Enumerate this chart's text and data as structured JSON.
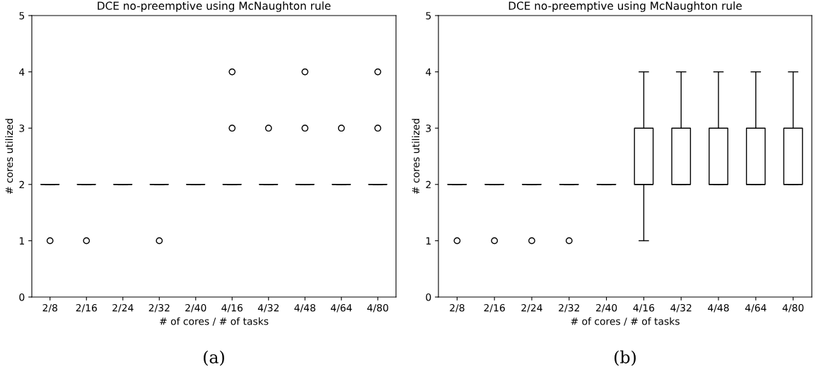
{
  "chart_data": [
    {
      "type": "box",
      "title": "DCE no-preemptive using McNaughton rule",
      "xlabel": "# of cores / # of tasks",
      "ylabel": "# cores utilized",
      "categories": [
        "2/8",
        "2/16",
        "2/24",
        "2/32",
        "2/40",
        "4/16",
        "4/32",
        "4/48",
        "4/64",
        "4/80"
      ],
      "ylim": [
        0,
        5
      ],
      "yticks": [
        0,
        1,
        2,
        3,
        4,
        5
      ],
      "grid": false,
      "annotations": [
        "(a)"
      ],
      "series": [
        {
          "color": "#000000",
          "boxes": [
            {
              "low": 2,
              "q1": 2,
              "median": 2,
              "q3": 2,
              "high": 2,
              "outliers": [
                1
              ]
            },
            {
              "low": 2,
              "q1": 2,
              "median": 2,
              "q3": 2,
              "high": 2,
              "outliers": [
                1
              ]
            },
            {
              "low": 2,
              "q1": 2,
              "median": 2,
              "q3": 2,
              "high": 2
            },
            {
              "low": 2,
              "q1": 2,
              "median": 2,
              "q3": 2,
              "high": 2,
              "outliers": [
                1
              ]
            },
            {
              "low": 2,
              "q1": 2,
              "median": 2,
              "q3": 2,
              "high": 2
            },
            {
              "low": 2,
              "q1": 2,
              "median": 2,
              "q3": 2,
              "high": 2,
              "outliers": [
                3,
                4
              ]
            },
            {
              "low": 2,
              "q1": 2,
              "median": 2,
              "q3": 2,
              "high": 2,
              "outliers": [
                3
              ]
            },
            {
              "low": 2,
              "q1": 2,
              "median": 2,
              "q3": 2,
              "high": 2,
              "outliers": [
                3,
                4
              ]
            },
            {
              "low": 2,
              "q1": 2,
              "median": 2,
              "q3": 2,
              "high": 2,
              "outliers": [
                3
              ]
            },
            {
              "low": 2,
              "q1": 2,
              "median": 2,
              "q3": 2,
              "high": 2,
              "outliers": [
                3,
                4
              ]
            }
          ]
        }
      ]
    },
    {
      "type": "box",
      "title": "DCE no-preemptive using McNaughton rule",
      "xlabel": "# of cores / # of tasks",
      "ylabel": "# cores utilized",
      "categories": [
        "2/8",
        "2/16",
        "2/24",
        "2/32",
        "2/40",
        "4/16",
        "4/32",
        "4/48",
        "4/64",
        "4/80"
      ],
      "ylim": [
        0,
        5
      ],
      "yticks": [
        0,
        1,
        2,
        3,
        4,
        5
      ],
      "grid": false,
      "annotations": [
        "(b)"
      ],
      "series": [
        {
          "color": "#000000",
          "boxes": [
            {
              "low": 2,
              "q1": 2,
              "median": 2,
              "q3": 2,
              "high": 2,
              "outliers": [
                1
              ]
            },
            {
              "low": 2,
              "q1": 2,
              "median": 2,
              "q3": 2,
              "high": 2,
              "outliers": [
                1
              ]
            },
            {
              "low": 2,
              "q1": 2,
              "median": 2,
              "q3": 2,
              "high": 2,
              "outliers": [
                1
              ]
            },
            {
              "low": 2,
              "q1": 2,
              "median": 2,
              "q3": 2,
              "high": 2,
              "outliers": [
                1
              ]
            },
            {
              "low": 2,
              "q1": 2,
              "median": 2,
              "q3": 2,
              "high": 2
            },
            {
              "low": 1,
              "q1": 2,
              "median": 2,
              "q3": 3,
              "high": 4
            },
            {
              "low": 2,
              "q1": 2,
              "median": 2,
              "q3": 3,
              "high": 4
            },
            {
              "low": 2,
              "q1": 2,
              "median": 2,
              "q3": 3,
              "high": 4
            },
            {
              "low": 2,
              "q1": 2,
              "median": 2,
              "q3": 3,
              "high": 4
            },
            {
              "low": 2,
              "q1": 2,
              "median": 2,
              "q3": 3,
              "high": 4
            }
          ]
        }
      ]
    }
  ]
}
